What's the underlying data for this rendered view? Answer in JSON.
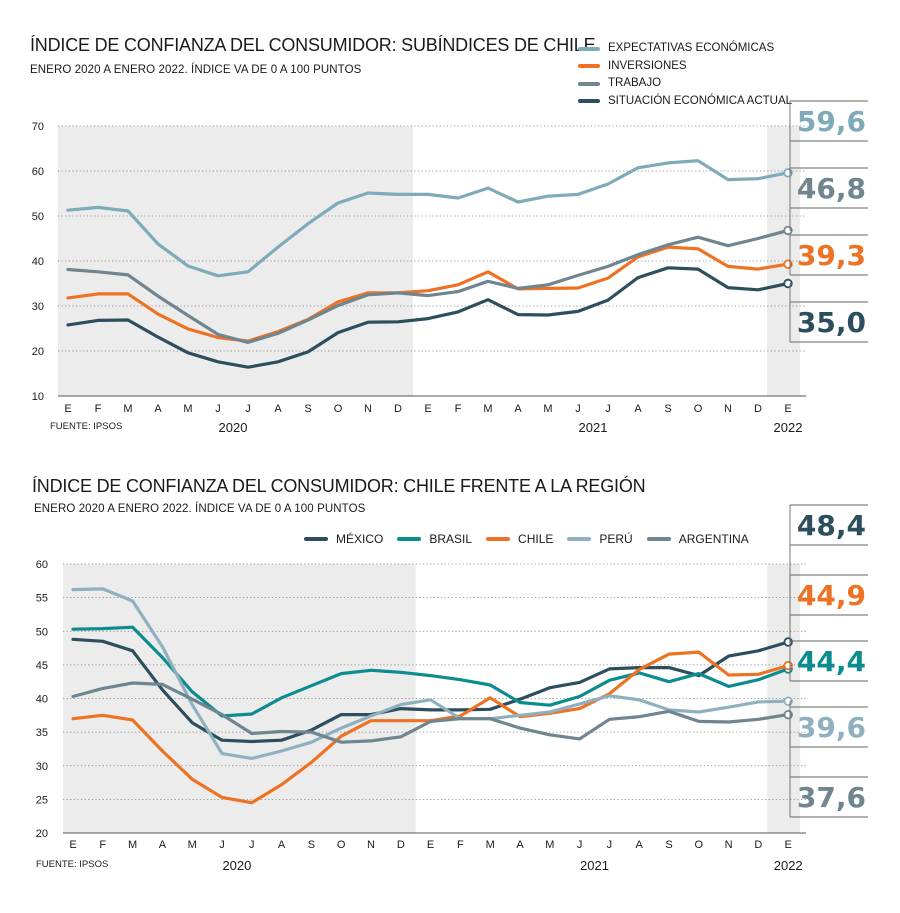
{
  "chart_data": [
    {
      "type": "line",
      "title": "ÍNDICE DE CONFIANZA DEL CONSUMIDOR: SUBÍNDICES DE CHILE",
      "subtitle": "ENERO 2020 A ENERO 2022. ÍNDICE VA DE 0 A 100 PUNTOS",
      "source": "FUENTE: IPSOS",
      "x": [
        "E",
        "F",
        "M",
        "A",
        "M",
        "J",
        "J",
        "A",
        "S",
        "O",
        "N",
        "D",
        "E",
        "F",
        "M",
        "A",
        "M",
        "J",
        "J",
        "A",
        "S",
        "O",
        "N",
        "D",
        "E"
      ],
      "years": [
        {
          "label": "2020",
          "at": 5.5
        },
        {
          "label": "2021",
          "at": 17.5
        },
        {
          "label": "2022",
          "at": 24
        }
      ],
      "ylim": [
        10,
        70
      ],
      "yticks": [
        10,
        20,
        30,
        40,
        50,
        60,
        70
      ],
      "shaded_ranges": [
        [
          0,
          11.5
        ],
        [
          23.3,
          24.4
        ]
      ],
      "legend_placement": "top-right",
      "series": [
        {
          "name": "EXPECTATIVAS ECONÓMICAS",
          "color": "#7eaab9",
          "values": [
            51.3,
            51.9,
            51.1,
            43.8,
            38.9,
            36.7,
            37.6,
            43.1,
            48.3,
            52.9,
            55.1,
            54.8,
            54.8,
            54.0,
            56.2,
            53.1,
            54.4,
            54.8,
            57.1,
            60.7,
            61.8,
            62.3,
            58.1,
            58.3,
            59.6
          ],
          "final_label": "59,6"
        },
        {
          "name": "INVERSIONES",
          "color": "#ee7223",
          "values": [
            31.8,
            32.7,
            32.7,
            28.2,
            24.9,
            23.0,
            22.2,
            24.3,
            27.0,
            30.9,
            32.9,
            32.9,
            33.4,
            34.7,
            37.6,
            33.8,
            33.9,
            34.0,
            36.2,
            40.9,
            43.1,
            42.7,
            38.8,
            38.2,
            39.3
          ],
          "final_label": "39,3"
        },
        {
          "name": "TRABAJO",
          "color": "#6f8590",
          "values": [
            38.1,
            37.6,
            36.9,
            32.2,
            27.9,
            23.7,
            21.9,
            23.9,
            26.9,
            30.1,
            32.5,
            32.9,
            32.3,
            33.2,
            35.5,
            33.9,
            34.7,
            36.8,
            38.8,
            41.4,
            43.6,
            45.3,
            43.4,
            45.0,
            46.8
          ],
          "final_label": "46,8"
        },
        {
          "name": "SITUACIÓN ECONÓMICA ACTUAL",
          "color": "#2d4e5c",
          "values": [
            25.8,
            26.8,
            26.9,
            23.1,
            19.6,
            17.6,
            16.4,
            17.6,
            19.8,
            24.1,
            26.4,
            26.5,
            27.2,
            28.7,
            31.4,
            28.1,
            28.0,
            28.8,
            31.3,
            36.3,
            38.5,
            38.2,
            34.1,
            33.6,
            35.0
          ],
          "final_label": "35,0"
        }
      ]
    },
    {
      "type": "line",
      "title": "ÍNDICE DE CONFIANZA DEL CONSUMIDOR: CHILE FRENTE A LA REGIÓN",
      "subtitle": "ENERO 2020 A ENERO 2022. ÍNDICE VA DE 0 A 100 PUNTOS",
      "source": "FUENTE: IPSOS",
      "x": [
        "E",
        "F",
        "M",
        "A",
        "M",
        "J",
        "J",
        "A",
        "S",
        "O",
        "N",
        "D",
        "E",
        "F",
        "M",
        "A",
        "M",
        "J",
        "J",
        "A",
        "S",
        "O",
        "N",
        "D",
        "E"
      ],
      "years": [
        {
          "label": "2020",
          "at": 5.5
        },
        {
          "label": "2021",
          "at": 17.5
        },
        {
          "label": "2022",
          "at": 24
        }
      ],
      "ylim": [
        20,
        60
      ],
      "yticks": [
        20,
        25,
        30,
        35,
        40,
        45,
        50,
        55,
        60
      ],
      "shaded_ranges": [
        [
          0,
          11.5
        ],
        [
          23.3,
          24.4
        ]
      ],
      "legend_placement": "top",
      "series": [
        {
          "name": "MÉXICO",
          "color": "#2d4e5c",
          "values": [
            48.8,
            48.5,
            47.1,
            41.3,
            36.4,
            33.8,
            33.6,
            33.8,
            35.3,
            37.6,
            37.6,
            38.5,
            38.3,
            38.3,
            38.4,
            39.9,
            41.6,
            42.4,
            44.4,
            44.6,
            44.6,
            43.4,
            46.3,
            47.1,
            48.4
          ],
          "final_label": "48,4"
        },
        {
          "name": "BRASIL",
          "color": "#0d8c8f",
          "values": [
            50.3,
            50.4,
            50.6,
            46.1,
            41.0,
            37.4,
            37.7,
            40.1,
            41.9,
            43.7,
            44.2,
            43.9,
            43.4,
            42.8,
            42.0,
            39.4,
            39.0,
            40.3,
            42.7,
            43.8,
            42.5,
            43.7,
            41.8,
            42.8,
            44.4
          ],
          "final_label": "44,4"
        },
        {
          "name": "CHILE",
          "color": "#ee7223",
          "values": [
            37.0,
            37.5,
            36.8,
            32.2,
            28.0,
            25.3,
            24.5,
            27.2,
            30.5,
            34.4,
            36.7,
            36.7,
            36.7,
            37.4,
            40.1,
            37.3,
            37.8,
            38.5,
            40.7,
            44.3,
            46.6,
            46.9,
            43.5,
            43.6,
            44.9
          ],
          "final_label": "44,9"
        },
        {
          "name": "PERÚ",
          "color": "#8fb1bf",
          "values": [
            56.2,
            56.3,
            54.5,
            47.7,
            39.1,
            31.8,
            31.1,
            32.2,
            33.5,
            35.6,
            37.4,
            39.1,
            39.8,
            37.0,
            37.0,
            37.5,
            38.0,
            39.2,
            40.4,
            39.8,
            38.3,
            38.0,
            38.7,
            39.5,
            39.6
          ],
          "final_label": "39,6"
        },
        {
          "name": "ARGENTINA",
          "color": "#6f8590",
          "values": [
            40.3,
            41.5,
            42.3,
            42.1,
            39.9,
            37.6,
            34.8,
            35.1,
            35.0,
            33.5,
            33.7,
            34.3,
            36.6,
            37.0,
            37.0,
            35.6,
            34.6,
            34.0,
            36.9,
            37.3,
            38.1,
            36.6,
            36.5,
            36.9,
            37.6
          ],
          "final_label": "37,6"
        }
      ]
    }
  ]
}
